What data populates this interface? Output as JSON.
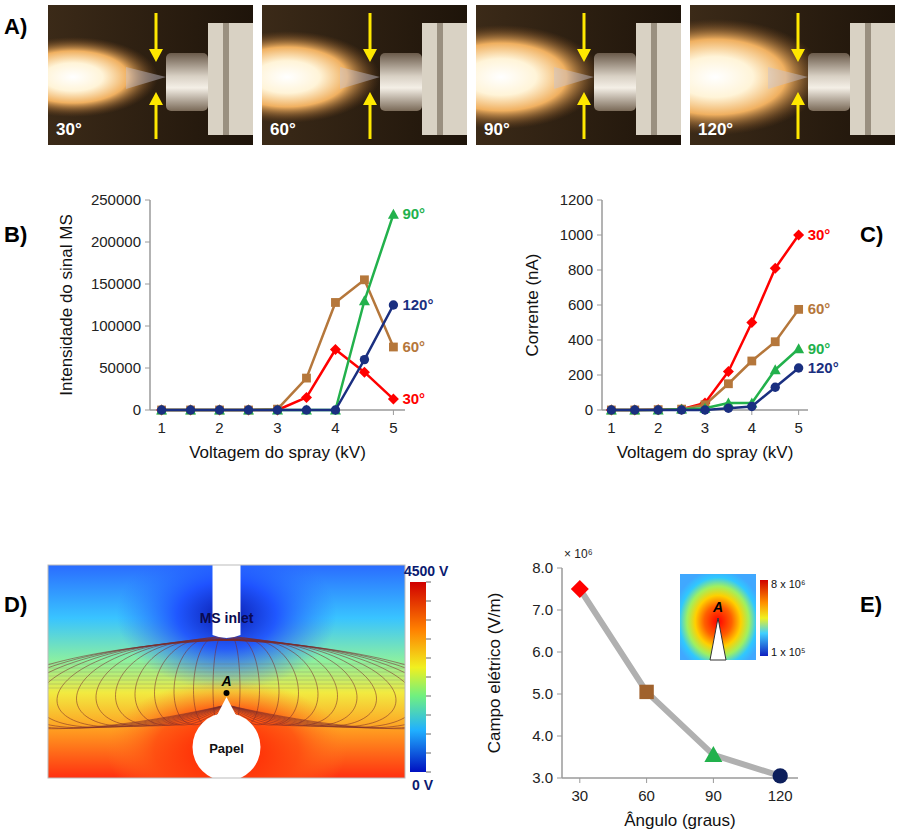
{
  "photos": {
    "panel_label": "A)",
    "labels": [
      "30°",
      "60°",
      "90°",
      "120°"
    ]
  },
  "chart_data": [
    {
      "panel_label": "B)",
      "type": "line",
      "x_label": "Voltagem do spray (kV)",
      "y_label": "Intensidade do sinal MS",
      "x": [
        1,
        1.5,
        2,
        2.5,
        3,
        3.5,
        4,
        4.5,
        5
      ],
      "series": [
        {
          "name": "30°",
          "color": "#ff0000",
          "marker": "diamond",
          "values": [
            0,
            0,
            0,
            0,
            0,
            15000,
            72000,
            45000,
            13000
          ]
        },
        {
          "name": "60°",
          "color": "#b5773b",
          "marker": "square",
          "values": [
            0,
            0,
            0,
            0,
            1000,
            38000,
            128000,
            155000,
            75000
          ]
        },
        {
          "name": "90°",
          "color": "#22b14c",
          "marker": "triangle",
          "values": [
            0,
            0,
            0,
            0,
            0,
            0,
            0,
            130000,
            233000
          ]
        },
        {
          "name": "120°",
          "color": "#1a2f80",
          "marker": "circle",
          "values": [
            0,
            0,
            0,
            0,
            0,
            0,
            0,
            60000,
            125000
          ]
        }
      ],
      "xlim": [
        0.8,
        5.2
      ],
      "xticks": [
        1,
        2,
        3,
        4,
        5
      ],
      "ylim": [
        0,
        250000
      ],
      "yticks": [
        0,
        50000,
        100000,
        150000,
        200000,
        250000
      ],
      "grid": false
    },
    {
      "panel_label": "C)",
      "type": "line",
      "x_label": "Voltagem do spray (kV)",
      "y_label": "Corrente (nA)",
      "x": [
        1,
        1.5,
        2,
        2.5,
        3,
        3.5,
        4,
        4.5,
        5
      ],
      "series": [
        {
          "name": "30°",
          "color": "#ff0000",
          "marker": "diamond",
          "values": [
            0,
            0,
            2,
            5,
            40,
            220,
            500,
            810,
            1000
          ]
        },
        {
          "name": "60°",
          "color": "#b5773b",
          "marker": "square",
          "values": [
            0,
            0,
            2,
            5,
            30,
            150,
            280,
            390,
            575
          ]
        },
        {
          "name": "90°",
          "color": "#22b14c",
          "marker": "triangle",
          "values": [
            0,
            0,
            0,
            5,
            10,
            40,
            40,
            230,
            350
          ]
        },
        {
          "name": "120°",
          "color": "#1a2f80",
          "marker": "circle",
          "values": [
            0,
            0,
            0,
            0,
            0,
            10,
            20,
            130,
            240
          ]
        }
      ],
      "xlim": [
        0.8,
        5.2
      ],
      "xticks": [
        1,
        2,
        3,
        4,
        5
      ],
      "ylim": [
        0,
        1200
      ],
      "yticks": [
        0,
        200,
        400,
        600,
        800,
        1000,
        1200
      ],
      "grid": false
    },
    {
      "panel_label": "E)",
      "type": "line",
      "x_label": "Ângulo (graus)",
      "y_label": "Campo elétrico (V/m)",
      "annotation": "× 10⁶",
      "x": [
        30,
        60,
        90,
        120
      ],
      "values": [
        7.5,
        5.05,
        3.55,
        3.05
      ],
      "color": "#b0b0b0",
      "colors": [
        "#ff0000",
        "#a0622d",
        "#22b14c",
        "#0d1f5c"
      ],
      "xlim": [
        22,
        128
      ],
      "xticks": [
        30,
        60,
        90,
        120
      ],
      "ylim": [
        3,
        8
      ],
      "yticks": [
        {
          "value": 3,
          "label": "3.0"
        },
        {
          "value": 4,
          "label": "4.0"
        },
        {
          "value": 5,
          "label": "5.0"
        },
        {
          "value": 6,
          "label": "6.0"
        },
        {
          "value": 7,
          "label": "7.0"
        },
        {
          "value": 8,
          "label": "8.0"
        }
      ],
      "grid": false,
      "inset": {
        "point_label": "A",
        "colorbar_max_label": "8 x 10⁶",
        "colorbar_min_label": "1 x 10⁵"
      }
    }
  ],
  "field_map": {
    "panel_label": "D)",
    "inlet_label": "MS inlet",
    "point_label": "A",
    "paper_label": "Papel",
    "colorbar_max_label": "4500 V",
    "colorbar_min_label": "0 V"
  }
}
